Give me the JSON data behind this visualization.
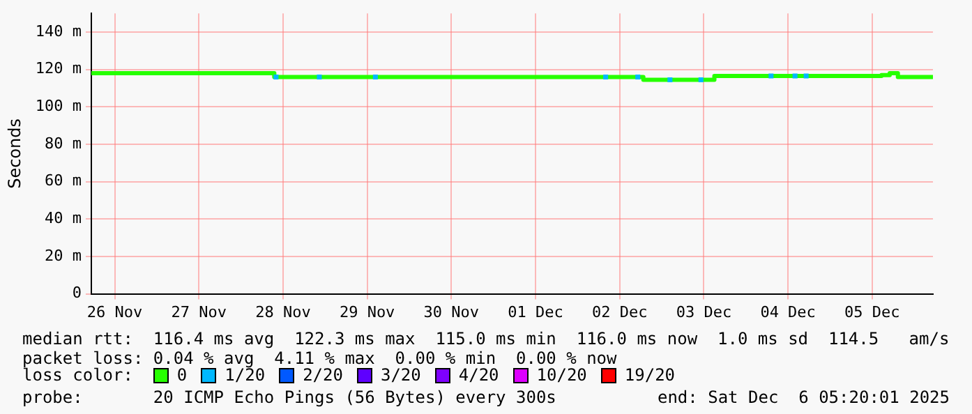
{
  "chart_data": {
    "type": "step",
    "ylabel": "Seconds",
    "xlim": [
      "2025-11-26T05:20",
      "2025-12-06T05:20"
    ],
    "xticks": [
      {
        "value": "2025-11-26T12:00",
        "label": "26 Nov"
      },
      {
        "value": "2025-11-27T12:00",
        "label": "27 Nov"
      },
      {
        "value": "2025-11-28T12:00",
        "label": "28 Nov"
      },
      {
        "value": "2025-11-29T12:00",
        "label": "29 Nov"
      },
      {
        "value": "2025-11-30T12:00",
        "label": "30 Nov"
      },
      {
        "value": "2025-12-01T12:00",
        "label": "01 Dec"
      },
      {
        "value": "2025-12-02T12:00",
        "label": "02 Dec"
      },
      {
        "value": "2025-12-03T12:00",
        "label": "03 Dec"
      },
      {
        "value": "2025-12-04T12:00",
        "label": "04 Dec"
      },
      {
        "value": "2025-12-05T12:00",
        "label": "05 Dec"
      }
    ],
    "ylim": [
      0,
      150
    ],
    "yticks": [
      0,
      {
        "value": 20,
        "label": "20 m"
      },
      {
        "value": 40,
        "label": "40 m"
      },
      {
        "value": 60,
        "label": "60 m"
      },
      {
        "value": 80,
        "label": "80 m"
      },
      {
        "value": 100,
        "label": "100 m"
      },
      {
        "value": 120,
        "label": "120 m"
      },
      {
        "value": 140,
        "label": "140 m"
      }
    ],
    "grid": true,
    "legend": "bottom",
    "legend_title": "loss color:",
    "series": [
      {
        "name": "0",
        "color": "#26ff00",
        "x": [
          "2025-11-26T05:20",
          "2025-11-28T09:30",
          "2025-12-02T18:45",
          "2025-12-03T15:00",
          "2025-12-05T14:40",
          "2025-12-05T17:00",
          "2025-12-05T19:20",
          "2025-12-06T05:20"
        ],
        "values": [
          118,
          116,
          114.5,
          116.5,
          117,
          118,
          116,
          116
        ]
      },
      {
        "name": "1/20",
        "type": "scatter",
        "marker": "square",
        "color": "#00b8ff",
        "x": [
          "2025-11-28T10:00",
          "2025-11-28T22:20",
          "2025-11-29T14:20",
          "2025-12-02T08:00",
          "2025-12-02T17:10",
          "2025-12-03T02:20",
          "2025-12-03T11:10",
          "2025-12-04T07:10",
          "2025-12-04T14:00",
          "2025-12-04T17:10"
        ],
        "values": [
          116,
          116,
          116,
          116,
          116,
          114.5,
          114.5,
          116.5,
          116.5,
          116.5
        ]
      },
      {
        "name": "2/20",
        "type": "scatter",
        "marker": "square",
        "color": "#0059ff"
      },
      {
        "name": "3/20",
        "type": "scatter",
        "marker": "square",
        "color": "#5e00ff"
      },
      {
        "name": "4/20",
        "type": "scatter",
        "marker": "square",
        "color": "#7e00ff"
      },
      {
        "name": "10/20",
        "type": "scatter",
        "marker": "square",
        "color": "#dd00ff"
      },
      {
        "name": "19/20",
        "type": "scatter",
        "marker": "square",
        "color": "#ff0000"
      }
    ],
    "annotations": [
      "median rtt:  116.4 ms avg  122.3 ms max  115.0 ms min  116.0 ms now  1.0 ms sd  114.5   am/s",
      "packet loss: 0.04 % avg  4.11 % max  0.00 % min  0.00 % now",
      "probe:       20 ICMP Echo Pings (56 Bytes) every 300s",
      "end: Sat Dec  6 05:20:01 2025"
    ]
  }
}
